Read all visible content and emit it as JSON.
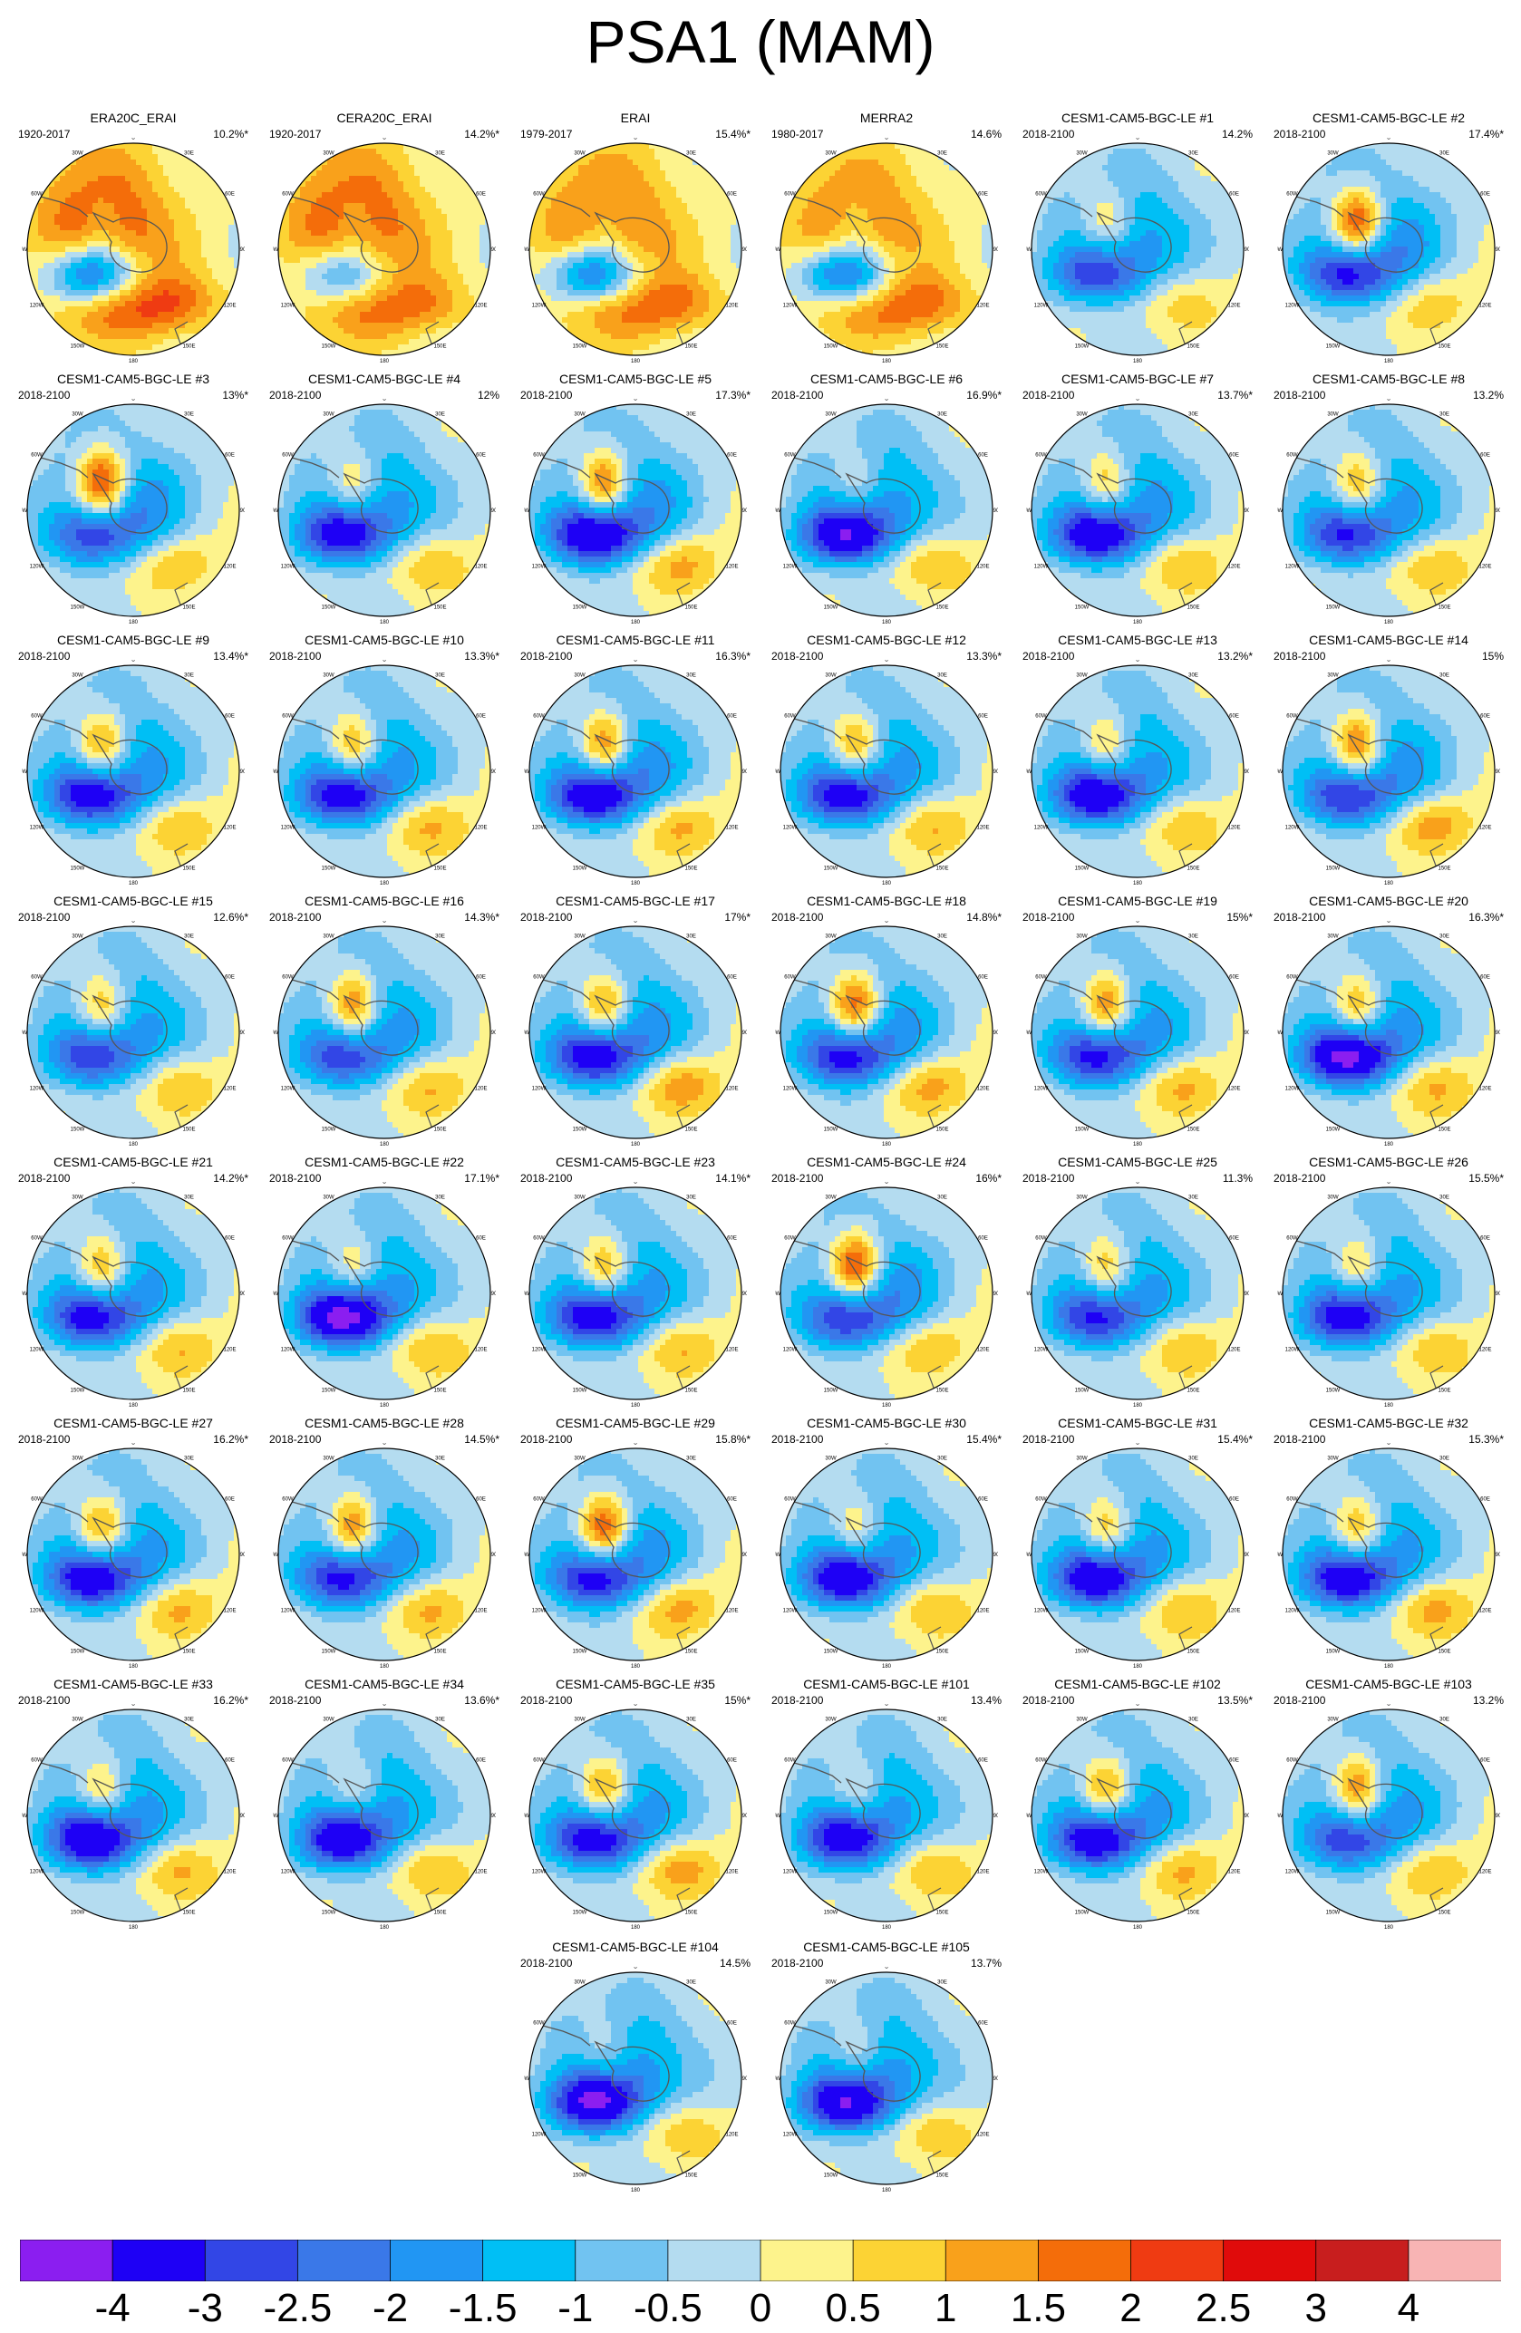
{
  "title": "PSA1 (MAM)",
  "map_labels": {
    "lon_top": "0",
    "lon_30w": "30W",
    "lon_30e": "30E",
    "lon_60w": "60W",
    "lon_60e": "60E",
    "lon_90w": "90W",
    "lon_90e": "90E",
    "lon_120w": "120W",
    "lon_120e": "120E",
    "lon_150w": "150W",
    "lon_150e": "150E",
    "lon_bottom": "180"
  },
  "chart_data": {
    "type": "heatmap",
    "colorbar": {
      "ticks": [
        "-4",
        "-3",
        "-2.5",
        "-2",
        "-1.5",
        "-1",
        "-0.5",
        "0",
        "0.5",
        "1",
        "1.5",
        "2",
        "2.5",
        "3",
        "4"
      ],
      "colors": [
        "#8b1ef0",
        "#1e00f5",
        "#3246e6",
        "#3a78e8",
        "#2196f3",
        "#00bff5",
        "#71c3f1",
        "#b4dcf0",
        "#fdf38c",
        "#fcd334",
        "#f9a11b",
        "#f46d0a",
        "#ef3b12",
        "#e00b0b",
        "#c81e1e",
        "#f8b4b4"
      ]
    },
    "panels": [
      {
        "title": "ERA20C_ERAI",
        "period": "1920-2017",
        "variance": "10.2%*",
        "pattern": [
          2.3,
          -0.9,
          -3.8,
          0.4,
          1.2,
          0.9
        ]
      },
      {
        "title": "CERA20C_ERAI",
        "period": "1920-2017",
        "variance": "14.2%*",
        "pattern": [
          2.3,
          -0.9,
          -2.7,
          0.4,
          0.9,
          0.7
        ]
      },
      {
        "title": "ERAI",
        "period": "1979-2017",
        "variance": "15.4%*",
        "pattern": [
          2.0,
          -0.9,
          -3.5,
          0.4,
          1.0,
          0.9
        ]
      },
      {
        "title": "MERRA2",
        "period": "1980-2017",
        "variance": "14.6%",
        "pattern": [
          1.8,
          -0.9,
          -3.5,
          0.4,
          1.0,
          0.9
        ]
      },
      {
        "title": "CESM1-CAM5-BGC-LE #1",
        "period": "2018-2100",
        "variance": "14.2%",
        "pattern": [
          -1.0,
          1.6,
          -2.1,
          -1.1,
          0.6,
          0.6
        ]
      },
      {
        "title": "CESM1-CAM5-BGC-LE #2",
        "period": "2018-2100",
        "variance": "17.4%*",
        "pattern": [
          -1.0,
          3.2,
          -2.6,
          -1.2,
          0.6,
          0.7
        ]
      },
      {
        "title": "CESM1-CAM5-BGC-LE #3",
        "period": "2018-2100",
        "variance": "13%*",
        "pattern": [
          -1.0,
          3.4,
          -2.2,
          -1.2,
          0.6,
          0.8
        ]
      },
      {
        "title": "CESM1-CAM5-BGC-LE #4",
        "period": "2018-2100",
        "variance": "12%",
        "pattern": [
          -1.0,
          1.6,
          -2.8,
          -1.1,
          0.6,
          0.8
        ]
      },
      {
        "title": "CESM1-CAM5-BGC-LE #5",
        "period": "2018-2100",
        "variance": "17.3%*",
        "pattern": [
          -1.0,
          2.8,
          -3.4,
          -1.2,
          0.7,
          1.0
        ]
      },
      {
        "title": "CESM1-CAM5-BGC-LE #6",
        "period": "2018-2100",
        "variance": "16.9%*",
        "pattern": [
          -1.0,
          1.2,
          -3.2,
          -1.1,
          0.6,
          0.9
        ]
      },
      {
        "title": "CESM1-CAM5-BGC-LE #7",
        "period": "2018-2100",
        "variance": "13.7%*",
        "pattern": [
          -1.0,
          2.0,
          -3.0,
          -1.2,
          0.6,
          0.9
        ]
      },
      {
        "title": "CESM1-CAM5-BGC-LE #8",
        "period": "2018-2100",
        "variance": "13.2%",
        "pattern": [
          -1.0,
          2.2,
          -2.4,
          -1.1,
          0.7,
          0.7
        ]
      },
      {
        "title": "CESM1-CAM5-BGC-LE #9",
        "period": "2018-2100",
        "variance": "13.4%*",
        "pattern": [
          -1.0,
          2.4,
          -2.9,
          -1.1,
          0.6,
          0.8
        ]
      },
      {
        "title": "CESM1-CAM5-BGC-LE #10",
        "period": "2018-2100",
        "variance": "13.3%*",
        "pattern": [
          -1.0,
          2.2,
          -2.8,
          -1.1,
          0.6,
          1.0
        ]
      },
      {
        "title": "CESM1-CAM5-BGC-LE #11",
        "period": "2018-2100",
        "variance": "16.3%*",
        "pattern": [
          -1.0,
          2.6,
          -3.1,
          -1.2,
          0.7,
          0.9
        ]
      },
      {
        "title": "CESM1-CAM5-BGC-LE #12",
        "period": "2018-2100",
        "variance": "13.3%*",
        "pattern": [
          -1.0,
          2.3,
          -2.8,
          -1.1,
          0.6,
          0.9
        ]
      },
      {
        "title": "CESM1-CAM5-BGC-LE #13",
        "period": "2018-2100",
        "variance": "13.2%*",
        "pattern": [
          -1.0,
          1.8,
          -3.0,
          -1.1,
          0.6,
          0.8
        ]
      },
      {
        "title": "CESM1-CAM5-BGC-LE #14",
        "period": "2018-2100",
        "variance": "15%",
        "pattern": [
          -1.0,
          2.8,
          -2.4,
          -1.2,
          0.6,
          1.2
        ]
      },
      {
        "title": "CESM1-CAM5-BGC-LE #15",
        "period": "2018-2100",
        "variance": "12.6%*",
        "pattern": [
          -1.0,
          2.0,
          -2.2,
          -1.1,
          0.6,
          0.8
        ]
      },
      {
        "title": "CESM1-CAM5-BGC-LE #16",
        "period": "2018-2100",
        "variance": "14.3%*",
        "pattern": [
          -1.0,
          2.6,
          -2.2,
          -1.1,
          0.6,
          0.9
        ]
      },
      {
        "title": "CESM1-CAM5-BGC-LE #17",
        "period": "2018-2100",
        "variance": "17%*",
        "pattern": [
          -1.0,
          2.4,
          -2.9,
          -1.2,
          0.6,
          1.3
        ]
      },
      {
        "title": "CESM1-CAM5-BGC-LE #18",
        "period": "2018-2100",
        "variance": "14.8%*",
        "pattern": [
          -1.0,
          3.0,
          -2.7,
          -1.1,
          0.6,
          1.1
        ]
      },
      {
        "title": "CESM1-CAM5-BGC-LE #19",
        "period": "2018-2100",
        "variance": "15%*",
        "pattern": [
          -1.0,
          2.6,
          -2.6,
          -1.1,
          0.6,
          1.0
        ]
      },
      {
        "title": "CESM1-CAM5-BGC-LE #20",
        "period": "2018-2100",
        "variance": "16.3%*",
        "pattern": [
          -1.0,
          2.2,
          -3.6,
          -1.1,
          0.6,
          1.0
        ]
      },
      {
        "title": "CESM1-CAM5-BGC-LE #21",
        "period": "2018-2100",
        "variance": "14.2%*",
        "pattern": [
          -1.0,
          2.2,
          -2.7,
          -1.1,
          0.6,
          0.9
        ]
      },
      {
        "title": "CESM1-CAM5-BGC-LE #22",
        "period": "2018-2100",
        "variance": "17.1%*",
        "pattern": [
          -1.0,
          1.6,
          -3.6,
          -1.1,
          0.6,
          0.9
        ]
      },
      {
        "title": "CESM1-CAM5-BGC-LE #23",
        "period": "2018-2100",
        "variance": "14.1%*",
        "pattern": [
          -1.0,
          2.2,
          -2.9,
          -1.1,
          0.6,
          0.9
        ]
      },
      {
        "title": "CESM1-CAM5-BGC-LE #24",
        "period": "2018-2100",
        "variance": "16%*",
        "pattern": [
          -1.0,
          3.3,
          -2.4,
          -1.2,
          0.6,
          0.8
        ]
      },
      {
        "title": "CESM1-CAM5-BGC-LE #25",
        "period": "2018-2100",
        "variance": "11.3%",
        "pattern": [
          -1.0,
          2.0,
          -2.4,
          -1.1,
          0.6,
          0.8
        ]
      },
      {
        "title": "CESM1-CAM5-BGC-LE #26",
        "period": "2018-2100",
        "variance": "15.5%*",
        "pattern": [
          -1.0,
          1.8,
          -2.8,
          -1.1,
          0.6,
          0.8
        ]
      },
      {
        "title": "CESM1-CAM5-BGC-LE #27",
        "period": "2018-2100",
        "variance": "16.2%*",
        "pattern": [
          -1.0,
          2.4,
          -3.0,
          -1.1,
          0.6,
          1.0
        ]
      },
      {
        "title": "CESM1-CAM5-BGC-LE #28",
        "period": "2018-2100",
        "variance": "14.5%*",
        "pattern": [
          -1.0,
          2.6,
          -2.6,
          -1.1,
          0.6,
          1.0
        ]
      },
      {
        "title": "CESM1-CAM5-BGC-LE #29",
        "period": "2018-2100",
        "variance": "15.8%*",
        "pattern": [
          -1.0,
          3.1,
          -2.7,
          -1.1,
          0.6,
          1.1
        ]
      },
      {
        "title": "CESM1-CAM5-BGC-LE #30",
        "period": "2018-2100",
        "variance": "15.4%*",
        "pattern": [
          -1.0,
          1.6,
          -3.0,
          -1.1,
          0.6,
          0.9
        ]
      },
      {
        "title": "CESM1-CAM5-BGC-LE #31",
        "period": "2018-2100",
        "variance": "15.4%*",
        "pattern": [
          -1.0,
          2.0,
          -3.0,
          -1.1,
          0.6,
          0.9
        ]
      },
      {
        "title": "CESM1-CAM5-BGC-LE #32",
        "period": "2018-2100",
        "variance": "15.3%*",
        "pattern": [
          -1.0,
          2.2,
          -3.0,
          -1.1,
          0.6,
          1.1
        ]
      },
      {
        "title": "CESM1-CAM5-BGC-LE #33",
        "period": "2018-2100",
        "variance": "16.2%*",
        "pattern": [
          -1.0,
          1.8,
          -3.2,
          -1.1,
          0.6,
          1.0
        ]
      },
      {
        "title": "CESM1-CAM5-BGC-LE #34",
        "period": "2018-2100",
        "variance": "13.6%*",
        "pattern": [
          -1.0,
          1.4,
          -3.0,
          -1.1,
          0.6,
          0.9
        ]
      },
      {
        "title": "CESM1-CAM5-BGC-LE #35",
        "period": "2018-2100",
        "variance": "15%*",
        "pattern": [
          -1.0,
          2.4,
          -2.8,
          -1.1,
          0.6,
          1.2
        ]
      },
      {
        "title": "CESM1-CAM5-BGC-LE #101",
        "period": "2018-2100",
        "variance": "13.4%",
        "pattern": [
          -1.0,
          1.4,
          -2.8,
          -1.1,
          0.6,
          0.9
        ]
      },
      {
        "title": "CESM1-CAM5-BGC-LE #102",
        "period": "2018-2100",
        "variance": "13.5%*",
        "pattern": [
          -1.0,
          2.4,
          -3.0,
          -1.1,
          0.6,
          1.0
        ]
      },
      {
        "title": "CESM1-CAM5-BGC-LE #103",
        "period": "2018-2100",
        "variance": "13.2%",
        "pattern": [
          -1.0,
          2.6,
          -2.2,
          -1.1,
          0.6,
          0.8
        ]
      },
      {
        "title": "CESM1-CAM5-BGC-LE #104",
        "period": "2018-2100",
        "variance": "14.5%",
        "pattern": [
          -1.0,
          1.0,
          -3.4,
          -1.1,
          0.6,
          0.8
        ]
      },
      {
        "title": "CESM1-CAM5-BGC-LE #105",
        "period": "2018-2100",
        "variance": "13.7%",
        "pattern": [
          -1.0,
          1.2,
          -3.2,
          -1.1,
          0.6,
          0.8
        ]
      }
    ]
  }
}
